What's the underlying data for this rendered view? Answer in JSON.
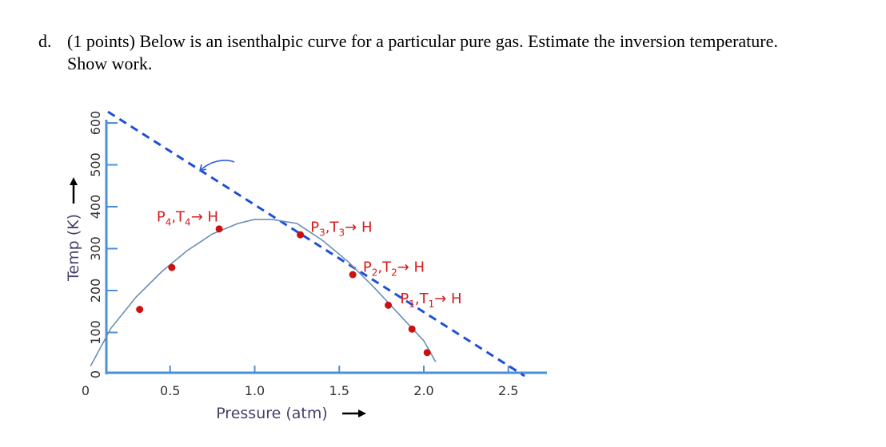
{
  "question": {
    "label": "d.",
    "text": "(1 points) Below is an isenthalpic curve for a particular pure gas.  Estimate the inversion temperature.",
    "text2": "Show work."
  },
  "chart_data": {
    "type": "line",
    "xlabel": "Pressure (atm)",
    "ylabel": "Temp (K)",
    "x_ticks": [
      "0",
      "0.5",
      "1.0",
      "1.5",
      "2.0",
      "2.5"
    ],
    "x_tick_values": [
      0,
      0.5,
      1.0,
      1.5,
      2.0,
      2.5
    ],
    "y_ticks": [
      "0",
      "100",
      "200",
      "300",
      "400",
      "500",
      "600"
    ],
    "y_tick_values": [
      0,
      100,
      200,
      300,
      400,
      500,
      600
    ],
    "xlim": [
      0,
      2.5
    ],
    "ylim": [
      0,
      620
    ],
    "series": [
      {
        "name": "",
        "style": "curve",
        "points": [
          [
            0.03,
            20
          ],
          [
            0.15,
            110
          ],
          [
            0.3,
            185
          ],
          [
            0.45,
            245
          ],
          [
            0.6,
            295
          ],
          [
            0.75,
            335
          ],
          [
            0.9,
            360
          ],
          [
            1.0,
            370
          ],
          [
            1.1,
            370
          ],
          [
            1.25,
            360
          ],
          [
            1.4,
            320
          ],
          [
            1.55,
            270
          ],
          [
            1.7,
            210
          ],
          [
            1.85,
            145
          ],
          [
            2.0,
            80
          ],
          [
            2.07,
            30
          ]
        ]
      },
      {
        "name": "",
        "style": "dashed-tangent",
        "points": [
          [
            0,
            620
          ],
          [
            2.55,
            0
          ]
        ]
      }
    ],
    "markers": [
      {
        "x": 0.32,
        "y": 155
      },
      {
        "x": 0.51,
        "y": 255
      },
      {
        "x": 0.79,
        "y": 347
      },
      {
        "x": 1.27,
        "y": 333
      },
      {
        "x": 1.58,
        "y": 238
      },
      {
        "x": 1.79,
        "y": 165
      },
      {
        "x": 1.93,
        "y": 108
      },
      {
        "x": 2.02,
        "y": 52
      }
    ],
    "annotations": [
      {
        "text": "P4,T4→ H",
        "x": 0.42,
        "y": 365
      },
      {
        "text": "P3,T3→ H",
        "x": 1.33,
        "y": 340
      },
      {
        "text": "P2,T2→ H",
        "x": 1.64,
        "y": 245
      },
      {
        "text": "P1,T1→ H",
        "x": 1.86,
        "y": 170
      }
    ],
    "colors": {
      "curve": "#6a8fb5",
      "tangent": "#1f4fd6",
      "marker": "#cc1111",
      "axis": "#4a90d9",
      "label": "#d81b1b",
      "axis_label": "#46406b"
    }
  }
}
